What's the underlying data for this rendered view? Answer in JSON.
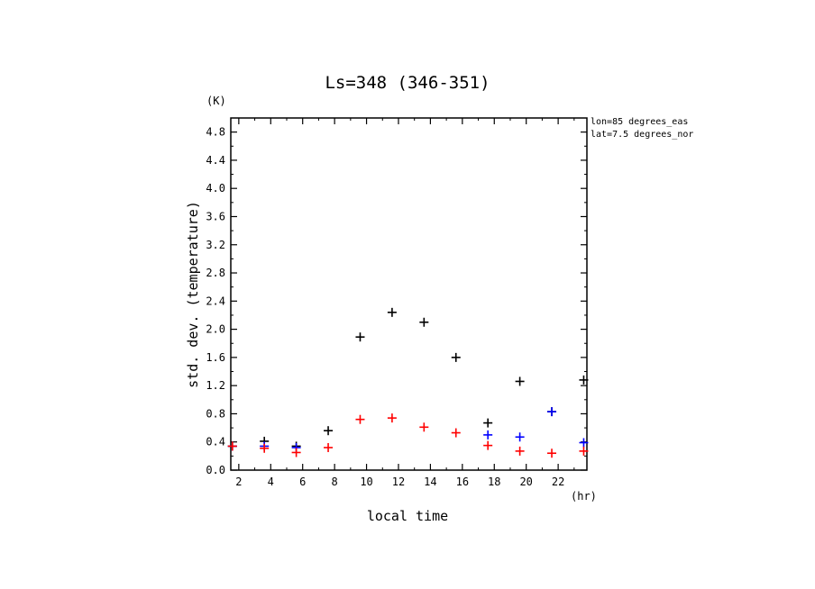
{
  "chart_data": {
    "type": "scatter",
    "title": "Ls=348 (346-351)",
    "xlabel": "local time",
    "ylabel": "std. dev. (temperature)",
    "x_unit": "(hr)",
    "y_unit": "(K)",
    "xlim": [
      1.5,
      23.8
    ],
    "ylim": [
      0.0,
      5.0
    ],
    "x_ticks": [
      2,
      4,
      6,
      8,
      10,
      12,
      14,
      16,
      18,
      20,
      22
    ],
    "y_ticks": [
      0.0,
      0.4,
      0.8,
      1.2,
      1.6,
      2.0,
      2.4,
      2.8,
      3.2,
      3.6,
      4.0,
      4.4,
      4.8
    ],
    "y_tick_labels": [
      "0.0",
      "0.4",
      "0.8",
      "1.2",
      "1.6",
      "2.0",
      "2.4",
      "2.8",
      "3.2",
      "3.6",
      "4.0",
      "4.4",
      "4.8"
    ],
    "annotations": [
      "lon=85 degrees_eas",
      "lat=7.5 degrees_nor"
    ],
    "series": [
      {
        "color": "#000000",
        "points": [
          [
            1.6,
            0.34
          ],
          [
            3.6,
            0.41
          ],
          [
            5.6,
            0.34
          ],
          [
            7.6,
            0.56
          ],
          [
            9.6,
            1.89
          ],
          [
            11.6,
            2.24
          ],
          [
            13.6,
            2.1
          ],
          [
            15.6,
            1.6
          ],
          [
            17.6,
            0.67
          ],
          [
            19.6,
            1.26
          ],
          [
            21.6,
            0.83
          ],
          [
            23.6,
            1.28
          ]
        ]
      },
      {
        "color": "#0000ff",
        "points": [
          [
            1.6,
            0.34
          ],
          [
            3.6,
            0.34
          ],
          [
            5.6,
            0.32
          ],
          [
            17.6,
            0.5
          ],
          [
            19.6,
            0.47
          ],
          [
            21.6,
            0.83
          ],
          [
            23.6,
            0.39
          ]
        ]
      },
      {
        "color": "#ff0000",
        "points": [
          [
            1.6,
            0.34
          ],
          [
            3.6,
            0.31
          ],
          [
            5.6,
            0.25
          ],
          [
            7.6,
            0.32
          ],
          [
            9.6,
            0.72
          ],
          [
            11.6,
            0.74
          ],
          [
            13.6,
            0.61
          ],
          [
            15.6,
            0.53
          ],
          [
            17.6,
            0.35
          ],
          [
            19.6,
            0.27
          ],
          [
            21.6,
            0.24
          ],
          [
            23.6,
            0.27
          ]
        ]
      }
    ]
  }
}
